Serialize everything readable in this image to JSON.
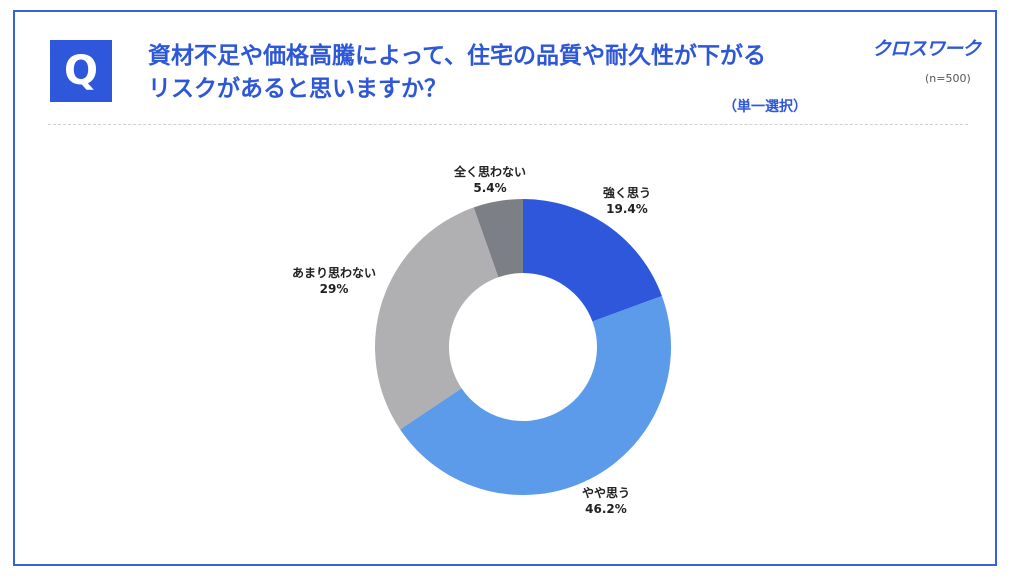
{
  "header": {
    "q_mark": "Q",
    "question_line1": "資材不足や価格高騰によって、住宅の品質や耐久性が下がる",
    "question_line2": "リスクがあると思いますか？",
    "answer_type": "（単一選択）",
    "brand": "クロスワーク",
    "sample_size": "(n=500)"
  },
  "chart_data": {
    "type": "pie",
    "variant": "donut",
    "categories": [
      "強く思う",
      "やや思う",
      "あまり思わない",
      "全く思わない"
    ],
    "values": [
      19.4,
      46.2,
      29,
      5.4
    ],
    "value_labels": [
      "19.4%",
      "46.2%",
      "29%",
      "5.4%"
    ],
    "colors": [
      "#2e57db",
      "#5b9bea",
      "#b0b0b3",
      "#7c7f86"
    ],
    "start": "12 o'clock",
    "direction": "clockwise"
  }
}
